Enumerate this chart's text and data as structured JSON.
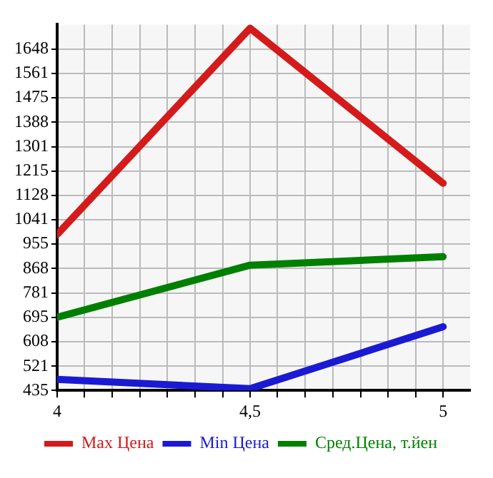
{
  "chart_data": {
    "type": "line",
    "x": [
      4,
      4.5,
      5
    ],
    "xlim": [
      4,
      5.07
    ],
    "xticks": [
      4,
      {
        "value": 4.071,
        "label": null
      },
      {
        "value": 4.143,
        "label": null
      },
      {
        "value": 4.214,
        "label": null
      },
      {
        "value": 4.286,
        "label": null
      },
      {
        "value": 4.357,
        "label": null
      },
      {
        "value": 4.429,
        "label": null
      },
      {
        "value": 4.5,
        "label": "4,5"
      },
      {
        "value": 4.571,
        "label": null
      },
      {
        "value": 4.643,
        "label": null
      },
      {
        "value": 4.714,
        "label": null
      },
      {
        "value": 4.786,
        "label": null
      },
      {
        "value": 4.857,
        "label": null
      },
      {
        "value": 4.929,
        "label": null
      },
      5
    ],
    "ylim": [
      435,
      1735
    ],
    "yticks": [
      435,
      521,
      608,
      695,
      781,
      868,
      955,
      1041,
      1128,
      1215,
      1301,
      1388,
      1475,
      1561,
      1648
    ],
    "series": [
      {
        "name": "Max Цена",
        "color": "#d41a1a",
        "values": [
          989,
          1722,
          1171
        ]
      },
      {
        "name": "Min Цена",
        "color": "#1a1ad4",
        "values": [
          474,
          441,
          661
        ]
      },
      {
        "name": "Сред.Цена, т.йен",
        "color": "#008000",
        "values": [
          695,
          880,
          910
        ]
      }
    ],
    "grid": true,
    "legend": "bottom",
    "marker": "none",
    "line_style": "solid"
  }
}
